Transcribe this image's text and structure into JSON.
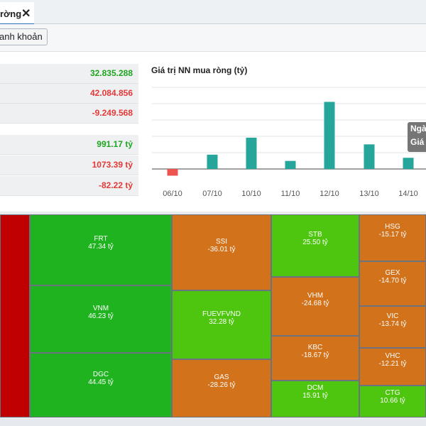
{
  "tab": {
    "label": "rờng",
    "close": "✕"
  },
  "toolbar": {
    "button_label": "anh khoản"
  },
  "stats": [
    {
      "value": "32.835.288",
      "color": "green"
    },
    {
      "value": "42.084.856",
      "color": "red"
    },
    {
      "value": "-9.249.568",
      "color": "red"
    },
    {
      "value": "991.17 tỷ",
      "color": "green"
    },
    {
      "value": "1073.39 tỷ",
      "color": "red"
    },
    {
      "value": "-82.22 tỷ",
      "color": "red"
    }
  ],
  "tooltip": {
    "line1": "Ngà",
    "line2": "Giá"
  },
  "chart_data": {
    "type": "bar",
    "title": "Giá trị NN mua ròng (tỷ)",
    "categories": [
      "06/10",
      "07/10",
      "10/10",
      "11/10",
      "12/10",
      "13/10",
      "14/10"
    ],
    "values": [
      -15,
      32,
      70,
      18,
      150,
      55,
      25
    ],
    "colors": {
      "positive": "#26a69a",
      "negative": "#ef5350"
    },
    "grid": true
  },
  "treemap": [
    {
      "name": "FRT",
      "value": "47.34 tỷ",
      "tone": "g-dark"
    },
    {
      "name": "VNM",
      "value": "46.23 tỷ",
      "tone": "g-dark"
    },
    {
      "name": "DGC",
      "value": "44.45 tỷ",
      "tone": "g-dark"
    },
    {
      "name": "SSI",
      "value": "-36.01 tỷ",
      "tone": "orange"
    },
    {
      "name": "FUEVFVND",
      "value": "32.28 tỷ",
      "tone": "g-light"
    },
    {
      "name": "GAS",
      "value": "-28.26 tỷ",
      "tone": "orange"
    },
    {
      "name": "STB",
      "value": "25.50 tỷ",
      "tone": "g-light"
    },
    {
      "name": "VHM",
      "value": "-24.68 tỷ",
      "tone": "orange"
    },
    {
      "name": "KBC",
      "value": "-18.67 tỷ",
      "tone": "orange"
    },
    {
      "name": "DCM",
      "value": "15.91 tỷ",
      "tone": "g-light"
    },
    {
      "name": "HSG",
      "value": "-15.17 tỷ",
      "tone": "orange"
    },
    {
      "name": "GEX",
      "value": "-14.70 tỷ",
      "tone": "orange"
    },
    {
      "name": "VIC",
      "value": "-13.74 tỷ",
      "tone": "orange"
    },
    {
      "name": "VHC",
      "value": "-12.21 tỷ",
      "tone": "orange"
    },
    {
      "name": "CTG",
      "value": "10.66 tỷ",
      "tone": "g-light"
    }
  ]
}
